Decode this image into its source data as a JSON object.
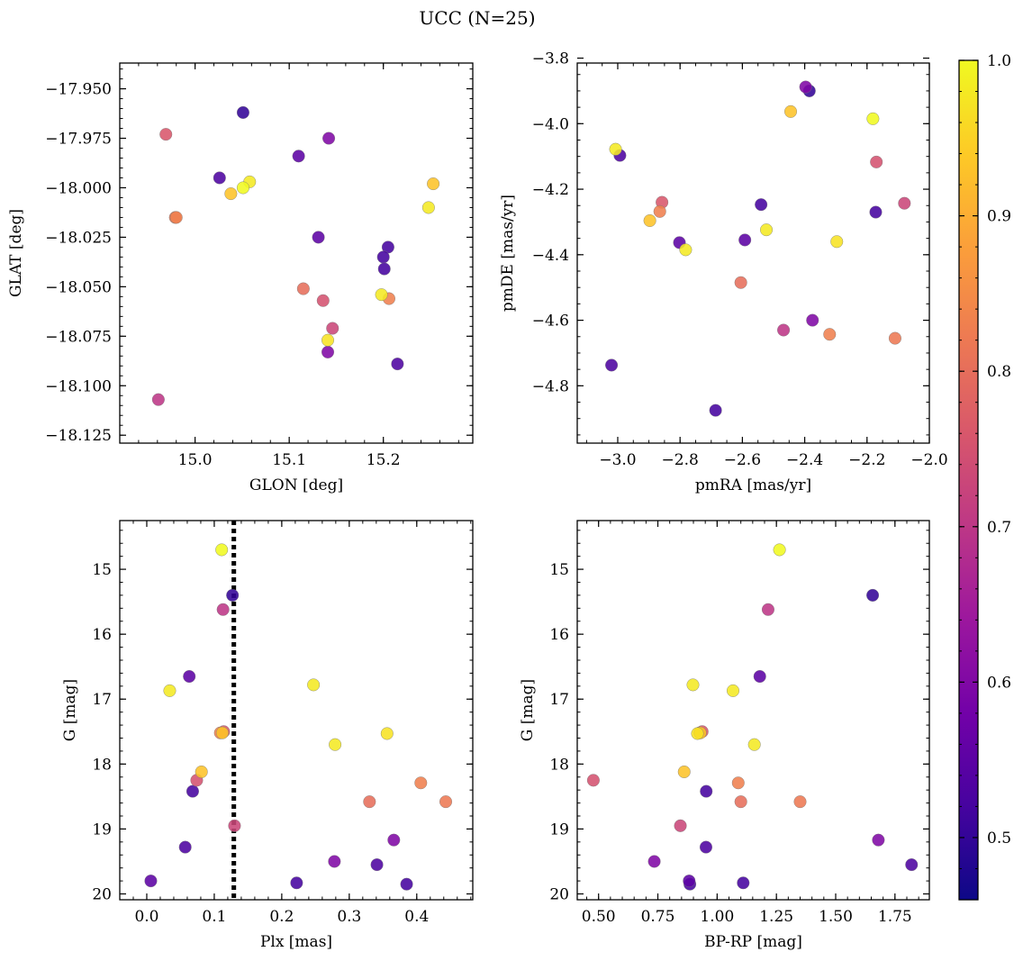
{
  "figure": {
    "title": "UCC (N=25)"
  },
  "colormap": {
    "name": "plasma",
    "stops": [
      "#0d0887",
      "#46039f",
      "#7201a8",
      "#9c179e",
      "#bd3786",
      "#d8576b",
      "#ed7953",
      "#fb9f3a",
      "#fdca26",
      "#f0f921"
    ],
    "range": [
      0.46,
      1.0
    ],
    "ticks": [
      "0.5",
      "0.6",
      "0.7",
      "0.8",
      "0.9",
      "1.0"
    ],
    "tick_values": [
      0.5,
      0.6,
      0.7,
      0.8,
      0.9,
      1.0
    ]
  },
  "stars": [
    {
      "glon": 14.969,
      "glat": -17.973,
      "pmra": -2.858,
      "pmde": -4.24,
      "plx": 0.114,
      "g": 17.5,
      "bprp": 0.937,
      "p": 0.76
    },
    {
      "glon": 15.051,
      "glat": -17.962,
      "pmra": -2.385,
      "pmde": -3.9,
      "plx": 0.127,
      "g": 15.4,
      "bprp": 1.656,
      "p": 0.5
    },
    {
      "glon": 15.11,
      "glat": -17.984,
      "pmra": -2.592,
      "pmde": -4.355,
      "plx": 0.006,
      "g": 19.8,
      "bprp": 0.882,
      "p": 0.55
    },
    {
      "glon": 15.142,
      "glat": -17.975,
      "pmra": -2.397,
      "pmde": -3.888,
      "plx": 0.278,
      "g": 19.5,
      "bprp": 0.735,
      "p": 0.6
    },
    {
      "glon": 15.026,
      "glat": -17.995,
      "pmra": -2.993,
      "pmde": -4.097,
      "plx": 0.057,
      "g": 19.28,
      "bprp": 0.953,
      "p": 0.53
    },
    {
      "glon": 15.038,
      "glat": -18.003,
      "pmra": -2.445,
      "pmde": -3.963,
      "plx": 0.112,
      "g": 17.52,
      "bprp": 0.929,
      "p": 0.93
    },
    {
      "glon": 15.051,
      "glat": -18.0,
      "pmra": -2.181,
      "pmde": -3.985,
      "plx": 0.111,
      "g": 14.7,
      "bprp": 1.263,
      "p": 1.0
    },
    {
      "glon": 15.058,
      "glat": -17.997,
      "pmra": -3.007,
      "pmde": -4.078,
      "plx": 0.034,
      "g": 16.87,
      "bprp": 1.067,
      "p": 0.98
    },
    {
      "glon": 14.98,
      "glat": -18.015,
      "pmra": -2.865,
      "pmde": -4.268,
      "plx": 0.109,
      "g": 17.52,
      "bprp": 0.926,
      "p": 0.83
    },
    {
      "glon": 15.253,
      "glat": -17.998,
      "pmra": -2.897,
      "pmde": -4.296,
      "plx": 0.081,
      "g": 18.12,
      "bprp": 0.861,
      "p": 0.93
    },
    {
      "glon": 15.248,
      "glat": -18.01,
      "pmra": -2.782,
      "pmde": -4.385,
      "plx": 0.247,
      "g": 16.78,
      "bprp": 0.898,
      "p": 0.98
    },
    {
      "glon": 15.131,
      "glat": -18.025,
      "pmra": -2.802,
      "pmde": -4.363,
      "plx": 0.063,
      "g": 16.65,
      "bprp": 1.18,
      "p": 0.55
    },
    {
      "glon": 15.205,
      "glat": -18.03,
      "pmra": -2.54,
      "pmde": -4.247,
      "plx": 0.068,
      "g": 18.42,
      "bprp": 0.954,
      "p": 0.52
    },
    {
      "glon": 15.2,
      "glat": -18.035,
      "pmra": -2.172,
      "pmde": -4.27,
      "plx": 0.385,
      "g": 19.85,
      "bprp": 0.885,
      "p": 0.52
    },
    {
      "glon": 15.201,
      "glat": -18.041,
      "pmra": -2.686,
      "pmde": -4.875,
      "plx": 0.222,
      "g": 19.83,
      "bprp": 1.11,
      "p": 0.52
    },
    {
      "glon": 15.115,
      "glat": -18.051,
      "pmra": -2.605,
      "pmde": -4.485,
      "plx": 0.33,
      "g": 18.58,
      "bprp": 1.1,
      "p": 0.8
    },
    {
      "glon": 15.136,
      "glat": -18.057,
      "pmra": -2.17,
      "pmde": -4.117,
      "plx": 0.074,
      "g": 18.25,
      "bprp": 0.478,
      "p": 0.75
    },
    {
      "glon": 15.198,
      "glat": -18.054,
      "pmra": -2.523,
      "pmde": -4.324,
      "plx": 0.279,
      "g": 17.7,
      "bprp": 1.157,
      "p": 0.98
    },
    {
      "glon": 15.206,
      "glat": -18.056,
      "pmra": -2.32,
      "pmde": -4.643,
      "plx": 0.406,
      "g": 18.29,
      "bprp": 1.089,
      "p": 0.83
    },
    {
      "glon": 15.146,
      "glat": -18.071,
      "pmra": -2.08,
      "pmde": -4.243,
      "plx": 0.13,
      "g": 18.95,
      "bprp": 0.845,
      "p": 0.73
    },
    {
      "glon": 15.141,
      "glat": -18.077,
      "pmra": -2.297,
      "pmde": -4.36,
      "plx": 0.356,
      "g": 17.53,
      "bprp": 0.917,
      "p": 0.97
    },
    {
      "glon": 15.141,
      "glat": -18.083,
      "pmra": -2.375,
      "pmde": -4.6,
      "plx": 0.366,
      "g": 19.17,
      "bprp": 1.68,
      "p": 0.6
    },
    {
      "glon": 15.215,
      "glat": -18.089,
      "pmra": -3.02,
      "pmde": -4.737,
      "plx": 0.341,
      "g": 19.55,
      "bprp": 1.82,
      "p": 0.53
    },
    {
      "glon": 14.961,
      "glat": -18.107,
      "pmra": -2.468,
      "pmde": -4.63,
      "plx": 0.113,
      "g": 15.62,
      "bprp": 1.215,
      "p": 0.7
    },
    {
      "glon": 14.979,
      "glat": -18.015,
      "pmra": -2.11,
      "pmde": -4.655,
      "plx": 0.443,
      "g": 18.58,
      "bprp": 1.35,
      "p": 0.82
    }
  ],
  "chart_data": [
    {
      "type": "scatter",
      "x_field": "glon",
      "y_field": "glat",
      "xlabel": "GLON [deg]",
      "ylabel": "GLAT [deg]",
      "xlim": [
        14.92,
        15.295
      ],
      "ylim": [
        -18.129,
        -17.937
      ],
      "xticks": [
        15.0,
        15.1,
        15.2
      ],
      "xtick_labels": [
        "15.0",
        "15.1",
        "15.2"
      ],
      "yticks": [
        -17.95,
        -17.975,
        -18.0,
        -18.025,
        -18.05,
        -18.075,
        -18.1,
        -18.125
      ],
      "ytick_labels": [
        "−17.950",
        "−17.975",
        "−18.000",
        "−18.025",
        "−18.050",
        "−18.075",
        "−18.100",
        "−18.125"
      ],
      "x_minor_step": 0.02,
      "y_minor_step": 0.005,
      "invert_y": false
    },
    {
      "type": "scatter",
      "x_field": "pmra",
      "y_field": "pmde",
      "xlabel": "pmRA [mas/yr]",
      "ylabel": "pmDE [mas/yr]",
      "xlim": [
        -3.13,
        -2.0
      ],
      "ylim": [
        -4.975,
        -3.815
      ],
      "xticks": [
        -3.0,
        -2.8,
        -2.6,
        -2.4,
        -2.2,
        -2.0
      ],
      "xtick_labels": [
        "−3.0",
        "−2.8",
        "−2.6",
        "−2.4",
        "−2.2",
        "−2.0"
      ],
      "yticks": [
        -3.8,
        -4.0,
        -4.2,
        -4.4,
        -4.6,
        -4.8
      ],
      "ytick_labels": [
        "−3.8",
        "−4.0",
        "−4.2",
        "−4.4",
        "−4.6",
        "−4.8"
      ],
      "x_minor_step": 0.05,
      "y_minor_step": 0.05,
      "invert_y": false
    },
    {
      "type": "scatter",
      "x_field": "plx",
      "y_field": "g",
      "xlabel": "Plx [mas]",
      "ylabel": "G [mag]",
      "xlim": [
        -0.04,
        0.483
      ],
      "ylim": [
        20.09,
        14.25
      ],
      "xticks": [
        0.0,
        0.1,
        0.2,
        0.3,
        0.4
      ],
      "xtick_labels": [
        "0.0",
        "0.1",
        "0.2",
        "0.3",
        "0.4"
      ],
      "yticks": [
        15,
        16,
        17,
        18,
        19,
        20
      ],
      "ytick_labels": [
        "15",
        "16",
        "17",
        "18",
        "19",
        "20"
      ],
      "x_minor_step": 0.02,
      "y_minor_step": 0.2,
      "invert_y": true,
      "vline": {
        "x": 0.129,
        "style": "dotted"
      }
    },
    {
      "type": "scatter",
      "x_field": "bprp",
      "y_field": "g",
      "xlabel": "BP-RP [mag]",
      "ylabel": "G [mag]",
      "xlim": [
        0.41,
        1.895
      ],
      "ylim": [
        20.09,
        14.25
      ],
      "xticks": [
        0.5,
        0.75,
        1.0,
        1.25,
        1.5,
        1.75
      ],
      "xtick_labels": [
        "0.50",
        "0.75",
        "1.00",
        "1.25",
        "1.50",
        "1.75"
      ],
      "yticks": [
        15,
        16,
        17,
        18,
        19,
        20
      ],
      "ytick_labels": [
        "15",
        "16",
        "17",
        "18",
        "19",
        "20"
      ],
      "x_minor_step": 0.05,
      "y_minor_step": 0.2,
      "invert_y": true
    }
  ]
}
